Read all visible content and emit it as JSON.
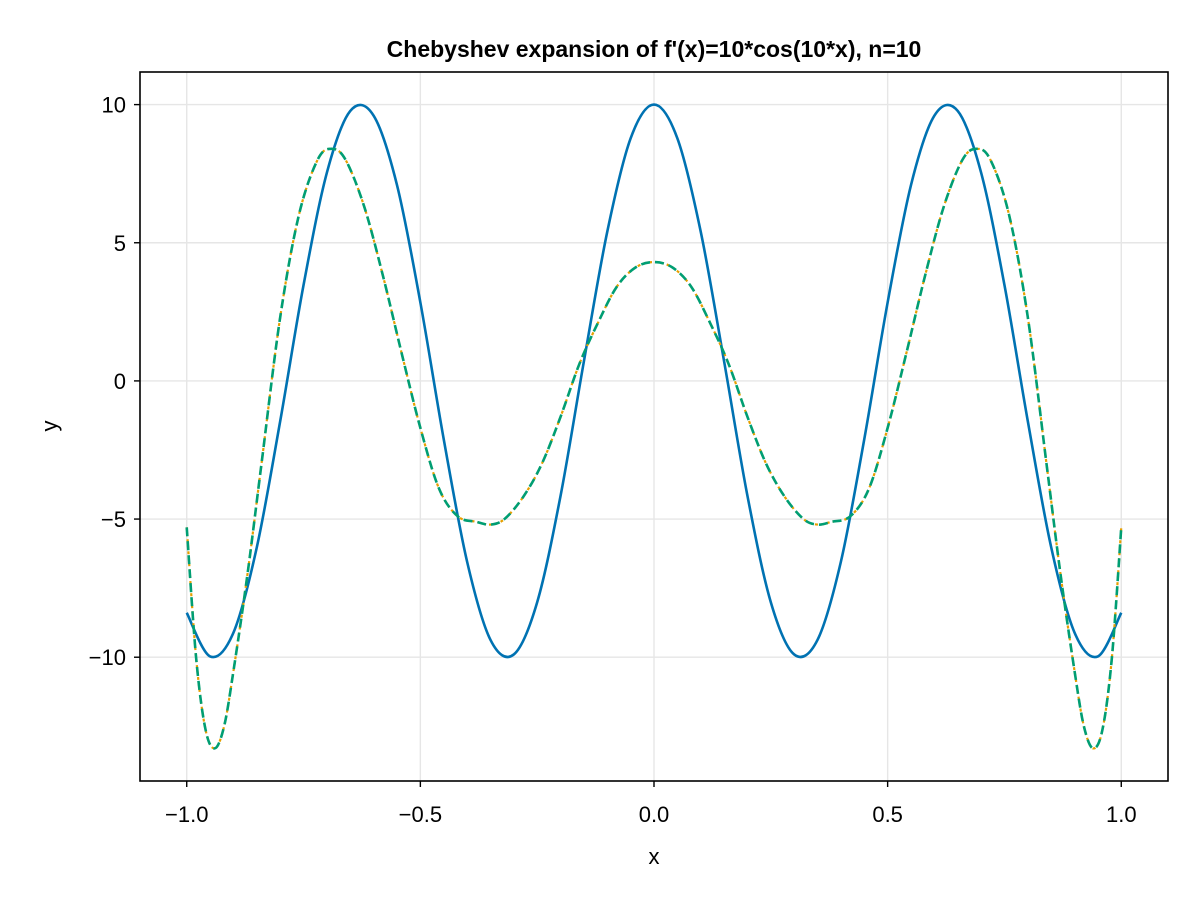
{
  "chart_data": {
    "type": "line",
    "title": "Chebyshev expansion of f'(x)=10*cos(10*x), n=10",
    "xlabel": "x",
    "ylabel": "y",
    "xlim": [
      -1.1,
      1.1
    ],
    "ylim": [
      -14.48,
      11.18
    ],
    "xticks": [
      -1.0,
      -0.5,
      0.0,
      0.5,
      1.0
    ],
    "xtick_labels": [
      "−1.0",
      "−0.5",
      "0.0",
      "0.5",
      "1.0"
    ],
    "yticks": [
      -10,
      -5,
      0,
      5,
      10
    ],
    "ytick_labels": [
      "−10",
      "−5",
      "0",
      "5",
      "10"
    ],
    "grid": true,
    "legend": "none",
    "series": [
      {
        "color": "#0072b2",
        "style": "solid",
        "x": [
          -1.0,
          -0.95,
          -0.9,
          -0.85,
          -0.8,
          -0.75,
          -0.7,
          -0.65,
          -0.6,
          -0.55,
          -0.5,
          -0.45,
          -0.4,
          -0.35,
          -0.3,
          -0.25,
          -0.2,
          -0.15,
          -0.1,
          -0.05,
          0.0,
          0.05,
          0.1,
          0.15,
          0.2,
          0.25,
          0.3,
          0.35,
          0.4,
          0.45,
          0.5,
          0.55,
          0.6,
          0.65,
          0.7,
          0.75,
          0.8,
          0.85,
          0.9,
          0.95,
          1.0
        ],
        "y": [
          -8.39,
          -9.97,
          -9.11,
          -6.02,
          -1.46,
          3.47,
          7.54,
          9.77,
          9.6,
          7.09,
          2.84,
          -2.11,
          -6.54,
          -9.37,
          -9.9,
          -8.01,
          -4.16,
          0.71,
          5.4,
          8.78,
          10.0,
          8.78,
          5.4,
          0.71,
          -4.16,
          -8.01,
          -9.9,
          -9.37,
          -6.54,
          -2.11,
          2.84,
          7.09,
          9.6,
          9.77,
          7.54,
          3.47,
          -1.46,
          -6.02,
          -9.11,
          -9.97,
          -8.39
        ]
      },
      {
        "color": "#e69f00",
        "style": "dotted",
        "x": [
          -1.0,
          -0.98,
          -0.96,
          -0.94,
          -0.92,
          -0.9,
          -0.87,
          -0.84,
          -0.8,
          -0.76,
          -0.72,
          -0.69,
          -0.66,
          -0.62,
          -0.58,
          -0.54,
          -0.5,
          -0.46,
          -0.42,
          -0.38,
          -0.35,
          -0.32,
          -0.28,
          -0.24,
          -0.2,
          -0.16,
          -0.12,
          -0.08,
          -0.04,
          0.0,
          0.04,
          0.08,
          0.12,
          0.16,
          0.2,
          0.24,
          0.28,
          0.32,
          0.35,
          0.38,
          0.42,
          0.46,
          0.5,
          0.54,
          0.58,
          0.62,
          0.66,
          0.69,
          0.72,
          0.76,
          0.8,
          0.84,
          0.87,
          0.9,
          0.92,
          0.94,
          0.96,
          0.98,
          1.0
        ],
        "y": [
          -5.3,
          -10.0,
          -12.6,
          -13.3,
          -12.5,
          -10.5,
          -7.0,
          -3.0,
          2.3,
          6.0,
          8.0,
          8.4,
          8.0,
          6.3,
          3.8,
          1.0,
          -1.7,
          -3.9,
          -4.9,
          -5.1,
          -5.2,
          -5.0,
          -4.2,
          -3.0,
          -1.3,
          0.6,
          2.1,
          3.4,
          4.1,
          4.3,
          4.1,
          3.4,
          2.1,
          0.6,
          -1.3,
          -3.0,
          -4.2,
          -5.0,
          -5.2,
          -5.1,
          -4.9,
          -3.9,
          -1.7,
          1.0,
          3.8,
          6.3,
          8.0,
          8.4,
          8.0,
          6.0,
          2.3,
          -3.0,
          -7.0,
          -10.5,
          -12.5,
          -13.3,
          -12.6,
          -10.0,
          -5.3
        ]
      },
      {
        "color": "#009e73",
        "style": "dashed",
        "x": [
          -1.0,
          -0.98,
          -0.96,
          -0.94,
          -0.92,
          -0.9,
          -0.87,
          -0.84,
          -0.8,
          -0.76,
          -0.72,
          -0.69,
          -0.66,
          -0.62,
          -0.58,
          -0.54,
          -0.5,
          -0.46,
          -0.42,
          -0.38,
          -0.35,
          -0.32,
          -0.28,
          -0.24,
          -0.2,
          -0.16,
          -0.12,
          -0.08,
          -0.04,
          0.0,
          0.04,
          0.08,
          0.12,
          0.16,
          0.2,
          0.24,
          0.28,
          0.32,
          0.35,
          0.38,
          0.42,
          0.46,
          0.5,
          0.54,
          0.58,
          0.62,
          0.66,
          0.69,
          0.72,
          0.76,
          0.8,
          0.84,
          0.87,
          0.9,
          0.92,
          0.94,
          0.96,
          0.98,
          1.0
        ],
        "y": [
          -5.3,
          -10.0,
          -12.6,
          -13.3,
          -12.5,
          -10.5,
          -7.0,
          -3.0,
          2.3,
          6.0,
          8.0,
          8.4,
          8.0,
          6.3,
          3.8,
          1.0,
          -1.7,
          -3.9,
          -4.9,
          -5.1,
          -5.2,
          -5.0,
          -4.2,
          -3.0,
          -1.3,
          0.6,
          2.1,
          3.4,
          4.1,
          4.3,
          4.1,
          3.4,
          2.1,
          0.6,
          -1.3,
          -3.0,
          -4.2,
          -5.0,
          -5.2,
          -5.1,
          -4.9,
          -3.9,
          -1.7,
          1.0,
          3.8,
          6.3,
          8.0,
          8.4,
          8.0,
          6.0,
          2.3,
          -3.0,
          -7.0,
          -10.5,
          -12.5,
          -13.3,
          -12.6,
          -10.0,
          -5.3
        ]
      }
    ]
  }
}
